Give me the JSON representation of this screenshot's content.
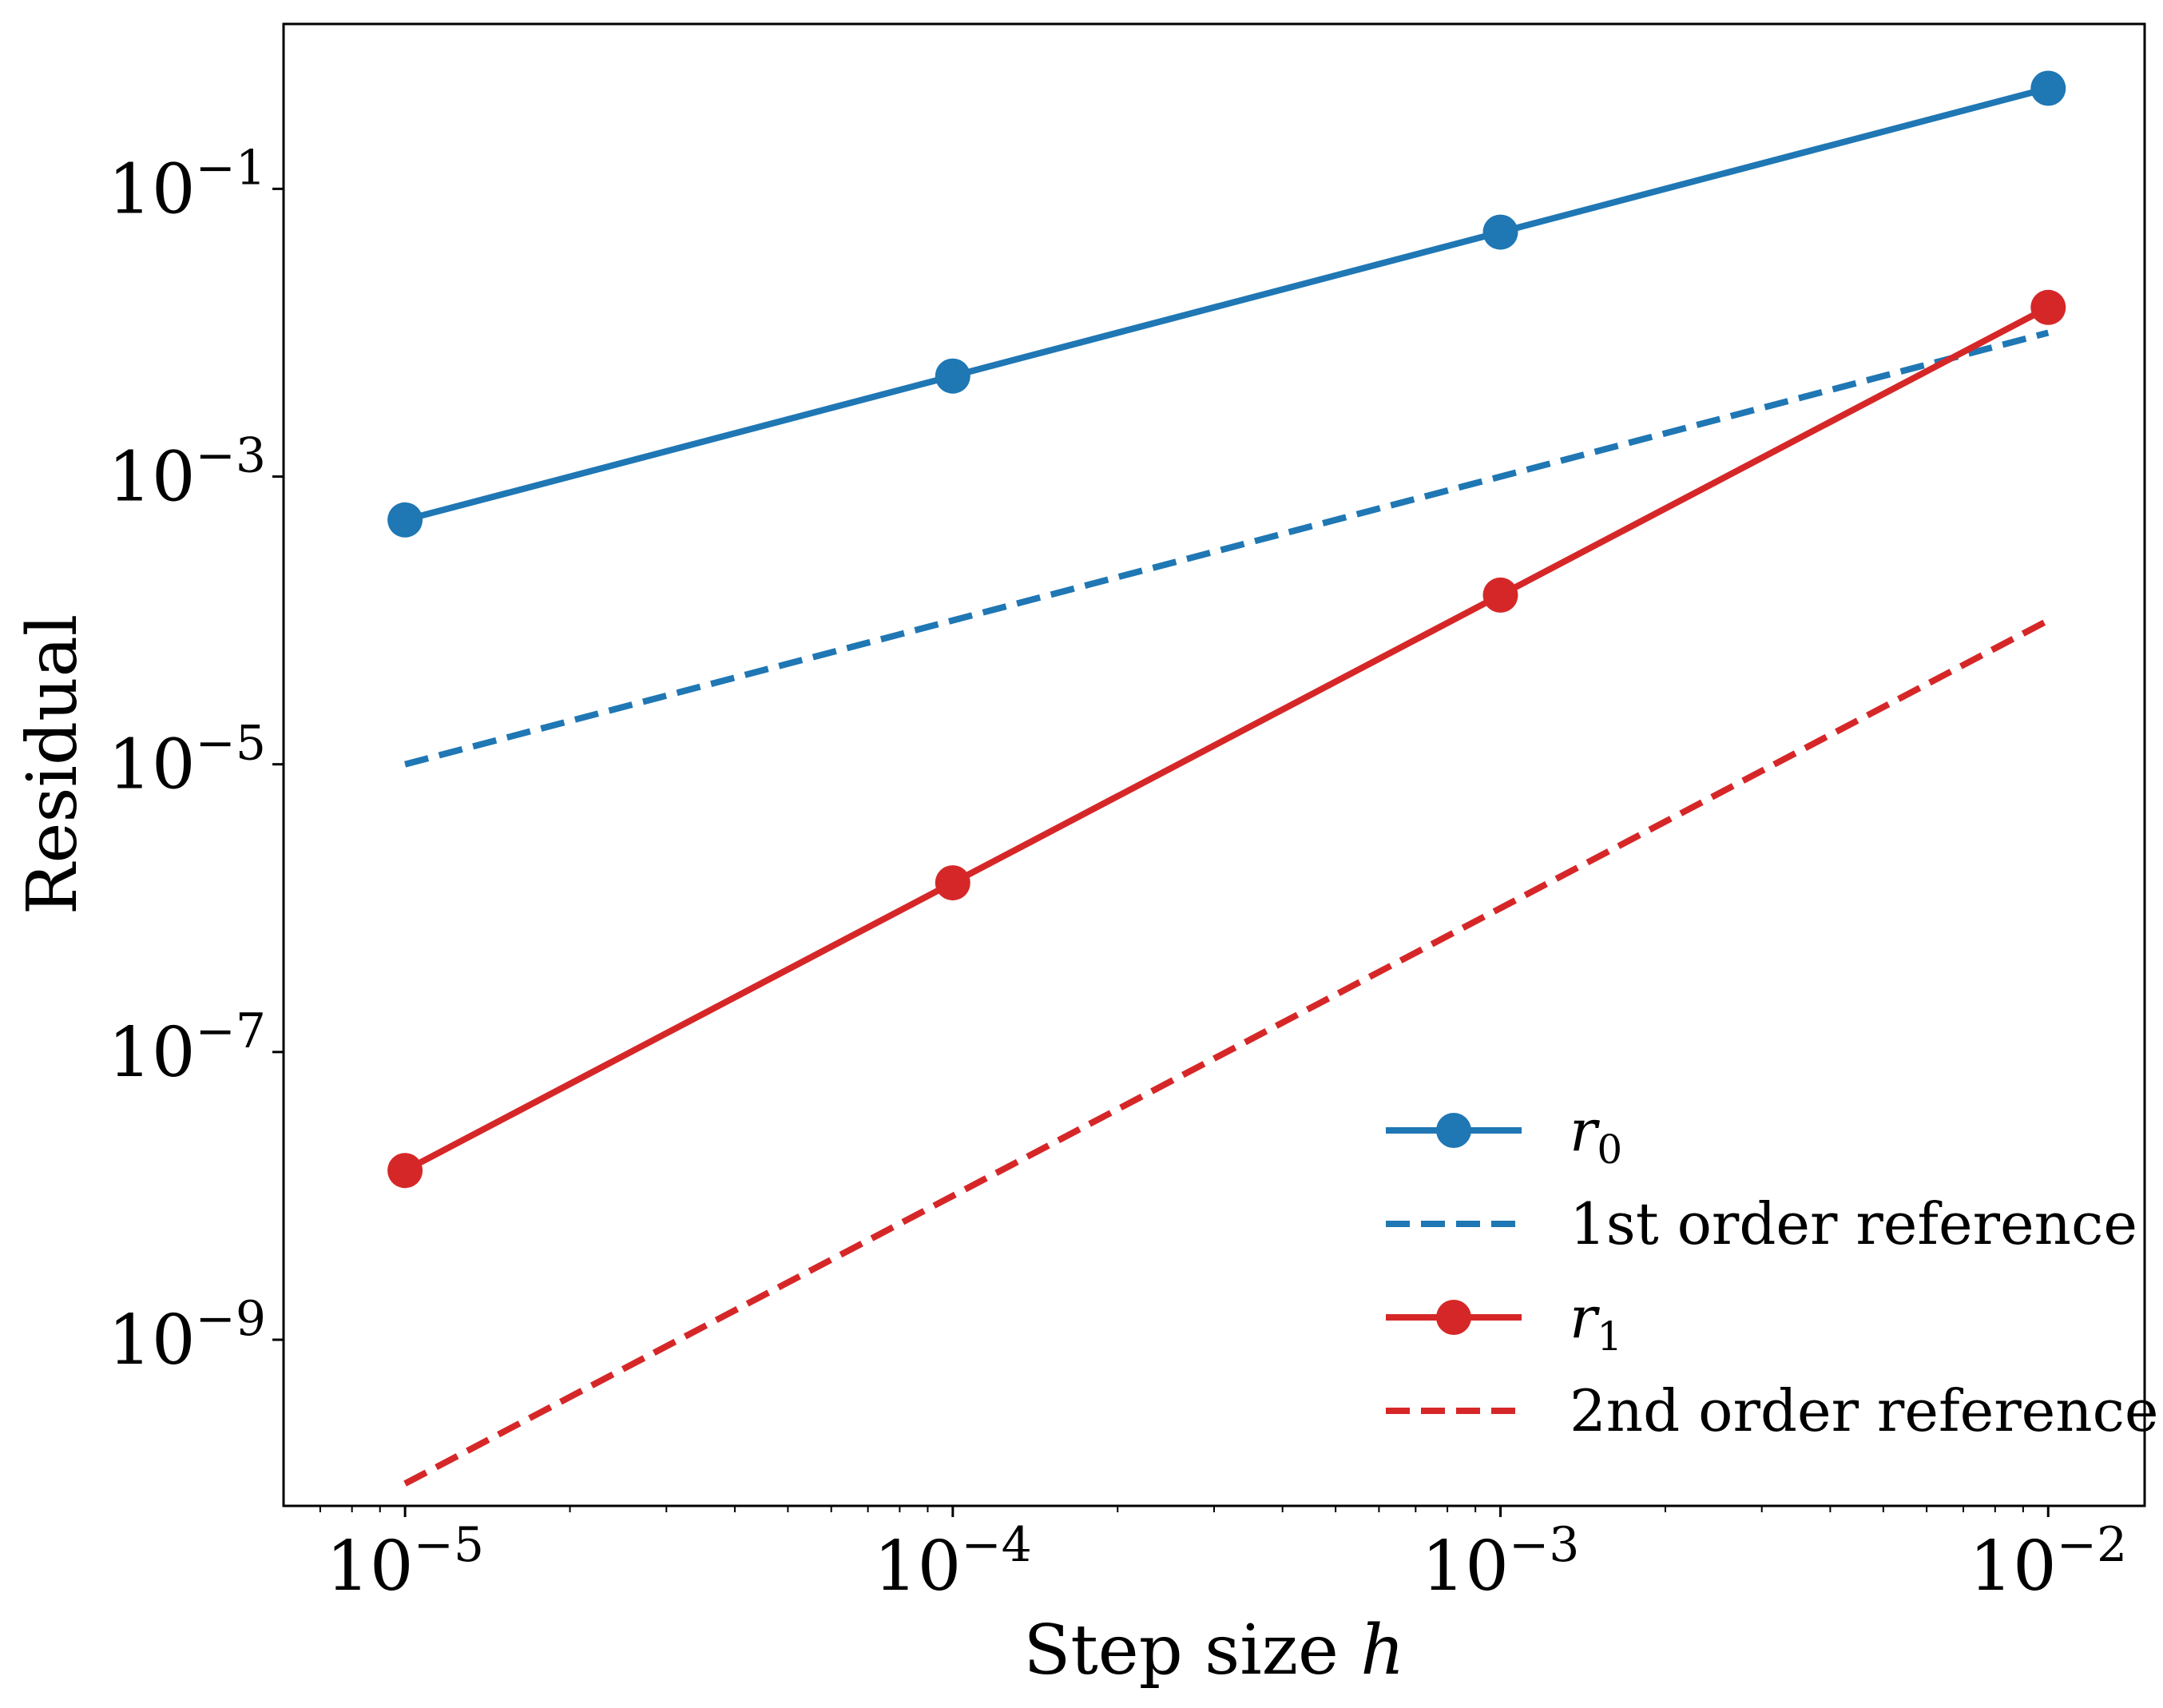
{
  "chart_data": {
    "type": "line",
    "xscale": "log",
    "yscale": "log",
    "xlabel_text": "Step size ",
    "xlabel_var": "h",
    "ylabel": "Residual",
    "xlim": [
      6e-06,
      0.015
    ],
    "ylim": [
      7e-11,
      1.4
    ],
    "x_ticks": [
      {
        "value": 1e-05,
        "base": "10",
        "exp": "−5"
      },
      {
        "value": 0.0001,
        "base": "10",
        "exp": "−4"
      },
      {
        "value": 0.001,
        "base": "10",
        "exp": "−3"
      },
      {
        "value": 0.01,
        "base": "10",
        "exp": "−2"
      }
    ],
    "y_ticks": [
      {
        "value": 0.1,
        "base": "10",
        "exp": "−1"
      },
      {
        "value": 0.001,
        "base": "10",
        "exp": "−3"
      },
      {
        "value": 1e-05,
        "base": "10",
        "exp": "−5"
      },
      {
        "value": 1e-07,
        "base": "10",
        "exp": "−7"
      },
      {
        "value": 1e-09,
        "base": "10",
        "exp": "−9"
      }
    ],
    "grid": false,
    "legend_position": "lower right",
    "series": [
      {
        "name": "r",
        "subscript": "0",
        "color": "#1f77b4",
        "style": "solid",
        "marker": "circle",
        "x": [
          1e-05,
          0.0001,
          0.001,
          0.01
        ],
        "y": [
          0.0005,
          0.005,
          0.05,
          0.5
        ]
      },
      {
        "name": "1st order reference",
        "color": "#1f77b4",
        "style": "dashed",
        "marker": "none",
        "x": [
          1e-05,
          0.0001,
          0.001,
          0.01
        ],
        "y": [
          1e-05,
          0.0001,
          0.001,
          0.01
        ]
      },
      {
        "name": "r",
        "subscript": "1",
        "color": "#d62728",
        "style": "solid",
        "marker": "circle",
        "x": [
          1e-05,
          0.0001,
          0.001,
          0.01
        ],
        "y": [
          1.5e-08,
          1.5e-06,
          0.00015,
          0.015
        ]
      },
      {
        "name": "2nd order reference",
        "color": "#d62728",
        "style": "dashed",
        "marker": "none",
        "x": [
          1e-05,
          0.0001,
          0.001,
          0.01
        ],
        "y": [
          1e-10,
          1e-08,
          1e-06,
          0.0001
        ]
      }
    ]
  }
}
